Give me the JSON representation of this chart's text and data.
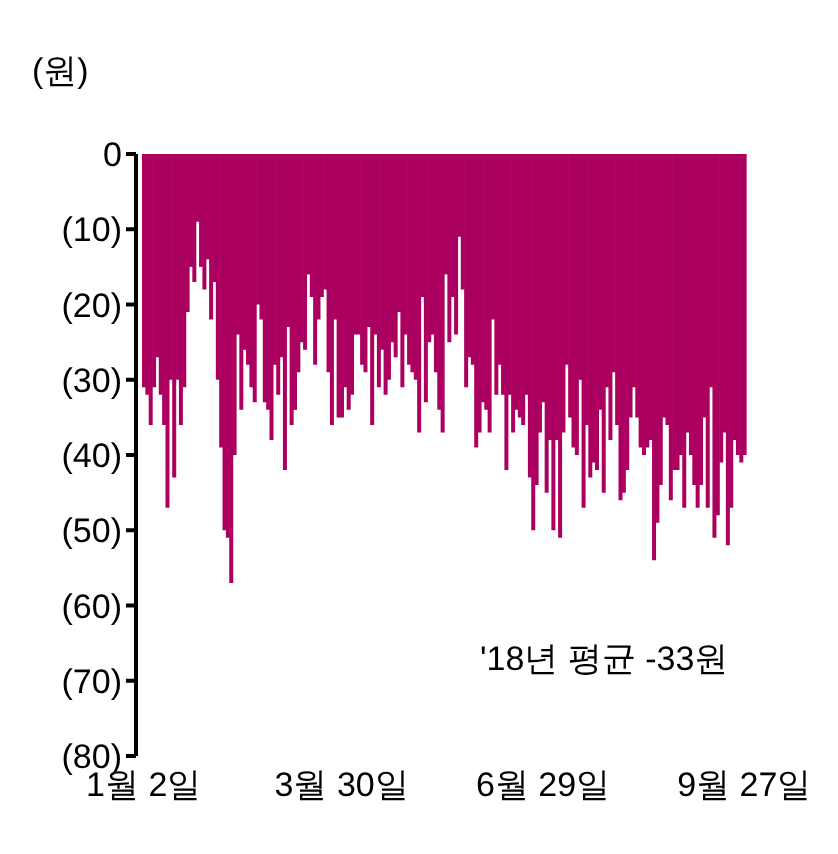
{
  "chart_data": {
    "type": "bar",
    "ylabel": "(원)",
    "annotations": [
      "'18년 평균 -33원"
    ],
    "categories": [
      "1월 2일",
      null,
      null,
      null,
      null,
      null,
      null,
      null,
      null,
      null,
      null,
      null,
      null,
      null,
      null,
      null,
      null,
      null,
      null,
      null,
      null,
      null,
      null,
      null,
      null,
      null,
      null,
      null,
      null,
      null,
      null,
      null,
      null,
      null,
      null,
      null,
      null,
      null,
      null,
      null,
      null,
      null,
      null,
      null,
      null,
      null,
      null,
      null,
      null,
      null,
      null,
      null,
      null,
      null,
      null,
      null,
      null,
      null,
      null,
      "3월 30일",
      null,
      null,
      null,
      null,
      null,
      null,
      null,
      null,
      null,
      null,
      null,
      null,
      null,
      null,
      null,
      null,
      null,
      null,
      null,
      null,
      null,
      null,
      null,
      null,
      null,
      null,
      null,
      null,
      null,
      null,
      null,
      null,
      null,
      null,
      null,
      null,
      null,
      null,
      null,
      null,
      null,
      null,
      null,
      null,
      null,
      null,
      null,
      null,
      null,
      null,
      null,
      null,
      null,
      null,
      null,
      null,
      null,
      null,
      null,
      "6월 29일",
      null,
      null,
      null,
      null,
      null,
      null,
      null,
      null,
      null,
      null,
      null,
      null,
      null,
      null,
      null,
      null,
      null,
      null,
      null,
      null,
      null,
      null,
      null,
      null,
      null,
      null,
      null,
      null,
      null,
      null,
      null,
      null,
      null,
      null,
      null,
      null,
      null,
      null,
      null,
      null,
      null,
      null,
      null,
      null,
      null,
      null,
      null,
      null,
      null,
      null,
      null,
      null,
      null,
      null,
      null,
      null,
      null,
      null,
      null,
      "9월 27일"
    ],
    "values": [
      -31,
      -32,
      -36,
      -31,
      -27,
      -32,
      -36,
      -47,
      -30,
      -43,
      -30,
      -36,
      -31,
      -21,
      -15,
      -17,
      -9,
      -15,
      -18,
      -14,
      -22,
      -17,
      -30,
      -39,
      -50,
      -51,
      -57,
      -40,
      -24,
      -34,
      -26,
      -28,
      -31,
      -33,
      -20,
      -22,
      -33,
      -34,
      -38,
      -28,
      -32,
      -27,
      -42,
      -23,
      -36,
      -34,
      -29,
      -25,
      -26,
      -16,
      -19,
      -28,
      -22,
      -19,
      -18,
      -29,
      -36,
      -22,
      -35,
      -35,
      -31,
      -34,
      -32,
      -24,
      -24,
      -28,
      -29,
      -23,
      -36,
      -24,
      -31,
      -26,
      -32,
      -30,
      -25,
      -27,
      -21,
      -31,
      -24,
      -28,
      -29,
      -30,
      -37,
      -19,
      -33,
      -25,
      -24,
      -29,
      -34,
      -37,
      -16,
      -25,
      -19,
      -24,
      -11,
      -18,
      -31,
      -27,
      -28,
      -39,
      -37,
      -33,
      -34,
      -37,
      -22,
      -32,
      -28,
      -32,
      -42,
      -32,
      -37,
      -34,
      -35,
      -36,
      -32,
      -43,
      -50,
      -44,
      -37,
      -33,
      -45,
      -38,
      -50,
      -38,
      -51,
      -37,
      -28,
      -35,
      -39,
      -40,
      -30,
      -47,
      -36,
      -43,
      -41,
      -42,
      -34,
      -45,
      -31,
      -38,
      -29,
      -36,
      -46,
      -45,
      -42,
      -35,
      -31,
      -35,
      -39,
      -40,
      -39,
      -38,
      -54,
      -49,
      -44,
      -35,
      -36,
      -46,
      -42,
      -42,
      -40,
      -47,
      -37,
      -40,
      -44,
      -47,
      -44,
      -35,
      -47,
      -31,
      -51,
      -48,
      -41,
      -37,
      -52,
      -47,
      -38,
      -40,
      -41,
      -40
    ],
    "color": "#ab0060",
    "ylim": [
      -80,
      0
    ],
    "yticks": [
      0,
      {
        "value": -10,
        "label": "(10)"
      },
      {
        "value": -20,
        "label": "(20)"
      },
      {
        "value": -30,
        "label": "(30)"
      },
      {
        "value": -40,
        "label": "(40)"
      },
      {
        "value": -50,
        "label": "(50)"
      },
      {
        "value": -60,
        "label": "(60)"
      },
      {
        "value": -70,
        "label": "(70)"
      },
      {
        "value": -80,
        "label": "(80)"
      }
    ]
  }
}
